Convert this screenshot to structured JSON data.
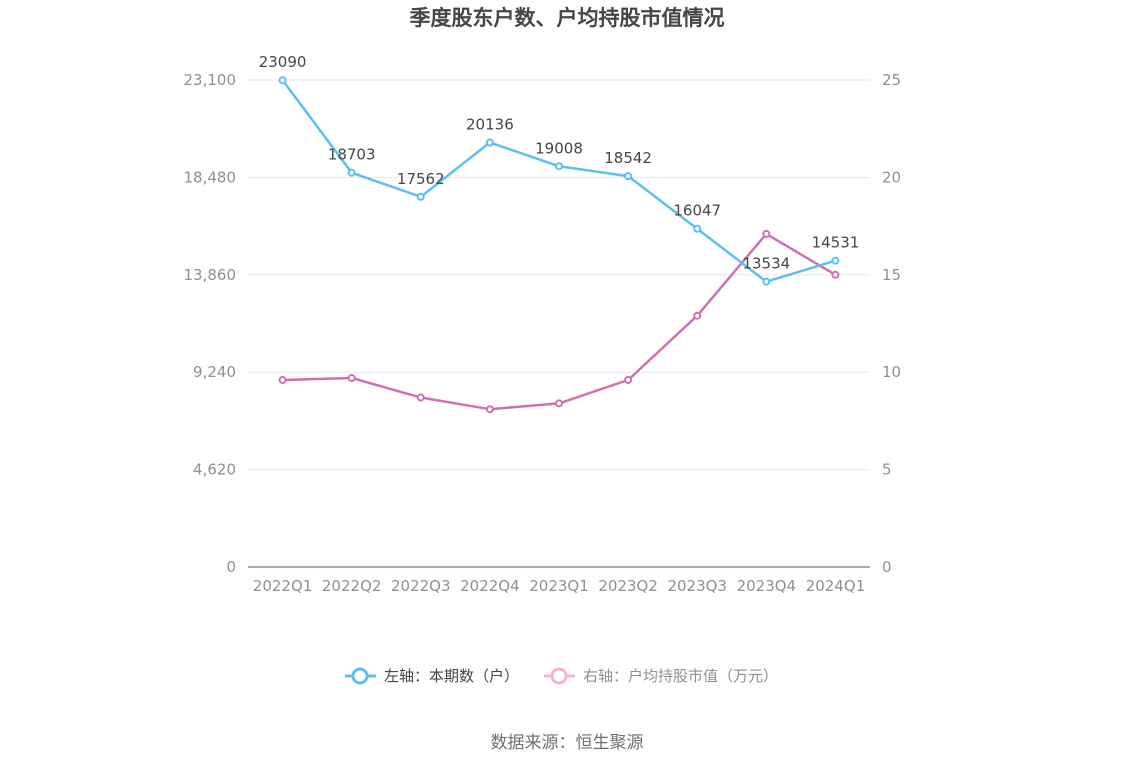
{
  "chart_data": {
    "type": "line",
    "title": "季度股东户数、户均持股市值情况",
    "categories": [
      "2022Q1",
      "2022Q2",
      "2022Q3",
      "2022Q4",
      "2023Q1",
      "2023Q2",
      "2023Q3",
      "2023Q4",
      "2024Q1"
    ],
    "y_left": {
      "ticks": [
        "0",
        "4,620",
        "9,240",
        "13,860",
        "18,480",
        "23,100"
      ],
      "range": [
        0,
        23100
      ]
    },
    "y_right": {
      "ticks": [
        "0",
        "5",
        "10",
        "15",
        "20",
        "25"
      ],
      "range": [
        0,
        25
      ]
    },
    "series": [
      {
        "name": "左轴：本期数（户）",
        "axis": "left",
        "color": "#5bc0f0",
        "values": [
          23090,
          18703,
          17562,
          20136,
          19008,
          18542,
          16047,
          13534,
          14531
        ],
        "labels": [
          "23090",
          "18703",
          "17562",
          "20136",
          "19008",
          "18542",
          "16047",
          "13534",
          "14531"
        ]
      },
      {
        "name": "右轴：户均持股市值（万元）",
        "axis": "right",
        "color": "#d070b4",
        "values": [
          9.6,
          9.7,
          8.7,
          8.1,
          8.4,
          9.6,
          12.9,
          17.1,
          15.0
        ]
      }
    ],
    "legend_position": "bottom",
    "grid": true
  },
  "source": "数据来源：恒生聚源"
}
